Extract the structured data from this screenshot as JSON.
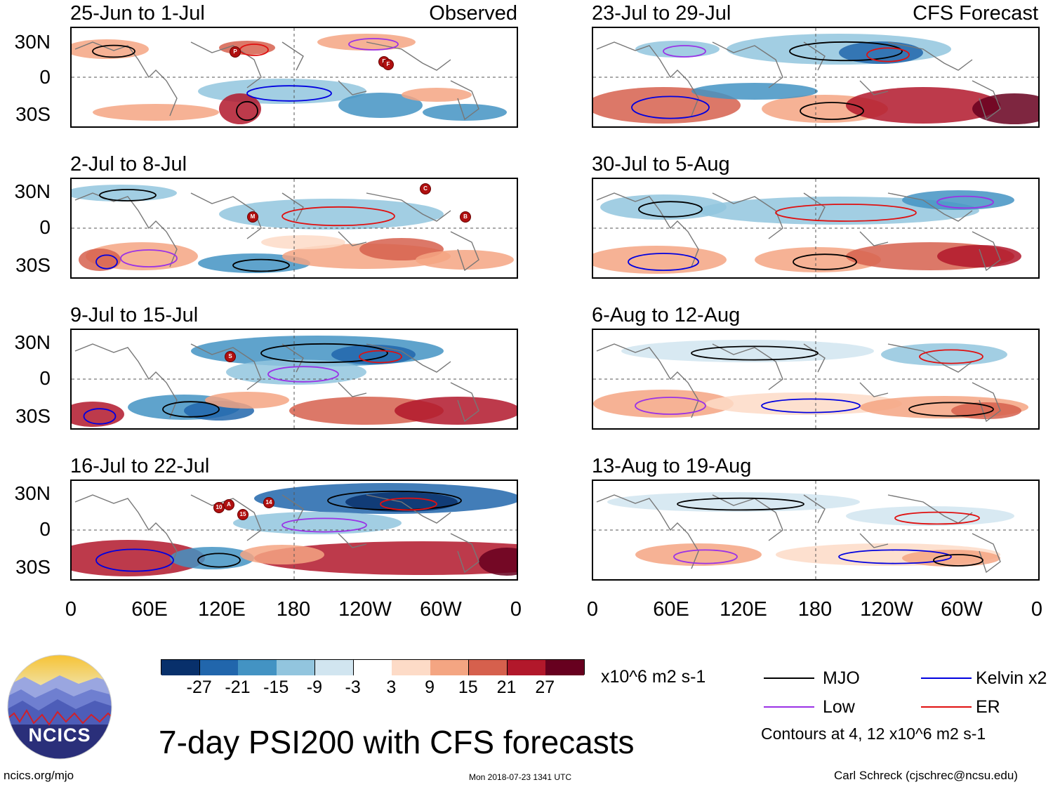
{
  "panels_observed": [
    {
      "title": "25-Jun to 1-Jul",
      "label": "Observed"
    },
    {
      "title": "2-Jul to 8-Jul",
      "label": ""
    },
    {
      "title": "9-Jul to 15-Jul",
      "label": ""
    },
    {
      "title": "16-Jul to 22-Jul",
      "label": ""
    }
  ],
  "panels_forecast": [
    {
      "title": "23-Jul to 29-Jul",
      "label": "CFS Forecast"
    },
    {
      "title": "30-Jul to 5-Aug",
      "label": ""
    },
    {
      "title": "6-Aug to 12-Aug",
      "label": ""
    },
    {
      "title": "13-Aug to 19-Aug",
      "label": ""
    }
  ],
  "y_labels": [
    "30N",
    "0",
    "30S"
  ],
  "x_labels": [
    "0",
    "60E",
    "120E",
    "180",
    "120W",
    "60W",
    "0"
  ],
  "storms": {
    "p1": [
      "P",
      "E",
      "F"
    ],
    "p2": [
      "C",
      "M",
      "B"
    ],
    "p3": [
      "S"
    ],
    "p4": [
      "10",
      "A",
      "15",
      "14"
    ]
  },
  "colorbar": {
    "colors": [
      "#08306b",
      "#2166ac",
      "#4393c3",
      "#92c5de",
      "#d1e5f0",
      "#ffffff",
      "#fddbc7",
      "#f4a582",
      "#d6604d",
      "#b2182b",
      "#67001f"
    ],
    "ticks": [
      "-27",
      "-21",
      "-15",
      "-9",
      "-3",
      "3",
      "9",
      "15",
      "21",
      "27"
    ],
    "units": "x10^6 m2 s-1"
  },
  "legend": {
    "items": [
      {
        "label": "MJO",
        "color": "#000000"
      },
      {
        "label": "Kelvin x2",
        "color": "#0000e0"
      },
      {
        "label": "Low",
        "color": "#9a32e6"
      },
      {
        "label": "ER",
        "color": "#e01010"
      }
    ],
    "note": "Contours at 4, 12 x10^6 m2 s-1"
  },
  "main_title": "7-day PSI200 with CFS forecasts",
  "logo_text": "NCICS",
  "website": "ncics.org/mjo",
  "timestamp": "Mon 2018-07-23 1341 UTC",
  "credit": "Carl Schreck (cjschrec@ncsu.edu)"
}
